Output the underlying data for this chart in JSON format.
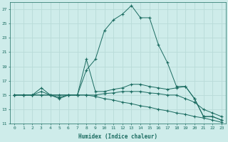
{
  "xlabel": "Humidex (Indice chaleur)",
  "background_color": "#ceecea",
  "grid_color": "#b8dbd8",
  "line_color": "#1a6b60",
  "xlim": [
    -0.5,
    23.5
  ],
  "ylim": [
    11,
    28
  ],
  "yticks": [
    11,
    13,
    15,
    17,
    19,
    21,
    23,
    25,
    27
  ],
  "xticks": [
    0,
    1,
    2,
    3,
    4,
    5,
    6,
    7,
    8,
    9,
    10,
    11,
    12,
    13,
    14,
    15,
    16,
    17,
    18,
    19,
    20,
    21,
    22,
    23
  ],
  "series": [
    {
      "x": [
        0,
        1,
        2,
        3,
        4,
        5,
        6,
        7,
        8,
        9,
        10,
        11,
        12,
        13,
        14,
        15,
        16,
        17,
        18,
        19,
        20,
        21,
        22,
        23
      ],
      "y": [
        15,
        15,
        15,
        16,
        15,
        14.5,
        15,
        15,
        18.5,
        20,
        24,
        25.5,
        26.3,
        27.5,
        25.8,
        25.8,
        22,
        19.5,
        16.2,
        16.2,
        14.5,
        12,
        12,
        11.5
      ]
    },
    {
      "x": [
        0,
        1,
        2,
        3,
        4,
        5,
        6,
        7,
        8,
        9,
        10,
        11,
        12,
        13,
        14,
        15,
        16,
        17,
        18,
        19,
        20,
        21,
        22,
        23
      ],
      "y": [
        15,
        15,
        15,
        15.5,
        15,
        15,
        15,
        15,
        20,
        15.5,
        15.5,
        15.8,
        16,
        16.5,
        16.5,
        16.2,
        16,
        15.8,
        16,
        16.2,
        14.5,
        12,
        12,
        11.5
      ]
    },
    {
      "x": [
        0,
        1,
        2,
        3,
        4,
        5,
        6,
        7,
        8,
        9,
        10,
        11,
        12,
        13,
        14,
        15,
        16,
        17,
        18,
        19,
        20,
        21,
        22,
        23
      ],
      "y": [
        15,
        15,
        15,
        15,
        15,
        14.7,
        15,
        15,
        15,
        15,
        15.2,
        15.3,
        15.5,
        15.5,
        15.5,
        15.3,
        15.2,
        15,
        15,
        14.5,
        14,
        13,
        12.5,
        12
      ]
    },
    {
      "x": [
        0,
        1,
        2,
        3,
        4,
        5,
        6,
        7,
        8,
        9,
        10,
        11,
        12,
        13,
        14,
        15,
        16,
        17,
        18,
        19,
        20,
        21,
        22,
        23
      ],
      "y": [
        15,
        15,
        15,
        15,
        15,
        15,
        15,
        15,
        15,
        14.8,
        14.5,
        14.3,
        14,
        13.8,
        13.5,
        13.3,
        13,
        12.8,
        12.5,
        12.3,
        12,
        11.8,
        11.5,
        11.2
      ]
    }
  ]
}
